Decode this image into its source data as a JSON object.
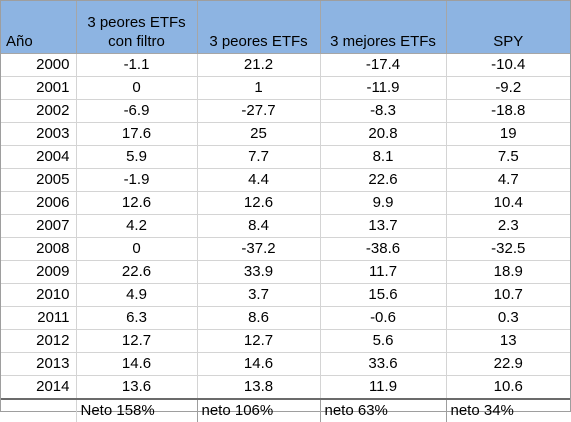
{
  "header": {
    "year_label": "Año",
    "col_a_line1": "3 peores ETFs",
    "col_a_line2": "con filtro",
    "col_b": "3 peores ETFs",
    "col_c": "3 mejores ETFs",
    "col_d": "SPY"
  },
  "colors": {
    "header_fill": "#8db4e2",
    "grid": "#d4d4d4"
  },
  "rows": [
    {
      "year": "2000",
      "a": "-1.1",
      "b": "21.2",
      "c": "-17.4",
      "d": "-10.4"
    },
    {
      "year": "2001",
      "a": "0",
      "b": "1",
      "c": "-11.9",
      "d": "-9.2"
    },
    {
      "year": "2002",
      "a": "-6.9",
      "b": "-27.7",
      "c": "-8.3",
      "d": "-18.8"
    },
    {
      "year": "2003",
      "a": "17.6",
      "b": "25",
      "c": "20.8",
      "d": "19"
    },
    {
      "year": "2004",
      "a": "5.9",
      "b": "7.7",
      "c": "8.1",
      "d": "7.5"
    },
    {
      "year": "2005",
      "a": "-1.9",
      "b": "4.4",
      "c": "22.6",
      "d": "4.7"
    },
    {
      "year": "2006",
      "a": "12.6",
      "b": "12.6",
      "c": "9.9",
      "d": "10.4"
    },
    {
      "year": "2007",
      "a": "4.2",
      "b": "8.4",
      "c": "13.7",
      "d": "2.3"
    },
    {
      "year": "2008",
      "a": "0",
      "b": "-37.2",
      "c": "-38.6",
      "d": "-32.5"
    },
    {
      "year": "2009",
      "a": "22.6",
      "b": "33.9",
      "c": "11.7",
      "d": "18.9"
    },
    {
      "year": "2010",
      "a": "4.9",
      "b": "3.7",
      "c": "15.6",
      "d": "10.7"
    },
    {
      "year": "2011",
      "a": "6.3",
      "b": "8.6",
      "c": "-0.6",
      "d": "0.3"
    },
    {
      "year": "2012",
      "a": "12.7",
      "b": "12.7",
      "c": "5.6",
      "d": "13"
    },
    {
      "year": "2013",
      "a": "14.6",
      "b": "14.6",
      "c": "33.6",
      "d": "22.9"
    },
    {
      "year": "2014",
      "a": "13.6",
      "b": "13.8",
      "c": "11.9",
      "d": "10.6"
    }
  ],
  "footer": {
    "year": "",
    "a": "Neto 158%",
    "b": "neto 106%",
    "c": "neto 63%",
    "d": "neto 34%"
  }
}
